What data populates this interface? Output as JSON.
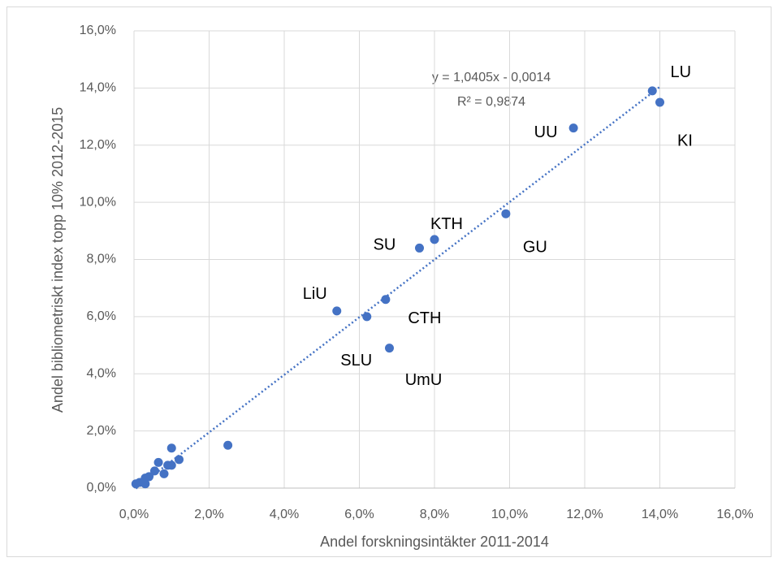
{
  "chart_data": {
    "type": "scatter",
    "x_label": "Andel forskningsintäkter 2011-2014",
    "y_label": "Andel bibliometriskt index topp 10% 2012-2015",
    "annotations": [
      "y = 1,0405x - 0,0014",
      "R² = 0,9874"
    ],
    "x": [
      13.8,
      14.0,
      11.7,
      9.9,
      8.0,
      7.6,
      6.7,
      5.4,
      6.2,
      6.8,
      1.0,
      2.5,
      1.2,
      0.9,
      1.0,
      0.65,
      0.8,
      0.55,
      0.4,
      0.3,
      0.15,
      0.05,
      0.3,
      0.25
    ],
    "values": [
      13.9,
      13.5,
      12.6,
      9.6,
      8.7,
      8.4,
      6.6,
      6.2,
      6.0,
      4.9,
      1.4,
      1.5,
      1.0,
      0.8,
      0.8,
      0.9,
      0.5,
      0.6,
      0.4,
      0.35,
      0.2,
      0.15,
      0.15,
      0.2
    ],
    "point_labels": [
      "LU",
      "KI",
      "UU",
      "GU",
      "KTH",
      "SU",
      "CTH",
      "LiU",
      "SLU",
      "UmU",
      null,
      null,
      null,
      null,
      null,
      null,
      null,
      null,
      null,
      null,
      null,
      null,
      null,
      null
    ],
    "color": "#4472c4",
    "trendline": true,
    "grid": true,
    "xlim": [
      0,
      16
    ],
    "xticks": [
      {
        "value": 0,
        "label": "0,0%"
      },
      {
        "value": 2,
        "label": "2,0%"
      },
      {
        "value": 4,
        "label": "4,0%"
      },
      {
        "value": 6,
        "label": "6,0%"
      },
      {
        "value": 8,
        "label": "8,0%"
      },
      {
        "value": 10,
        "label": "10,0%"
      },
      {
        "value": 12,
        "label": "12,0%"
      },
      {
        "value": 14,
        "label": "14,0%"
      },
      {
        "value": 16,
        "label": "16,0%"
      }
    ],
    "ylim": [
      0,
      16
    ],
    "yticks": [
      {
        "value": 0,
        "label": "0,0%"
      },
      {
        "value": 2,
        "label": "2,0%"
      },
      {
        "value": 4,
        "label": "4,0%"
      },
      {
        "value": 6,
        "label": "6,0%"
      },
      {
        "value": 8,
        "label": "8,0%"
      },
      {
        "value": 10,
        "label": "10,0%"
      },
      {
        "value": 12,
        "label": "12,0%"
      },
      {
        "value": 14,
        "label": "14,0%"
      },
      {
        "value": 16,
        "label": "16,0%"
      }
    ]
  }
}
